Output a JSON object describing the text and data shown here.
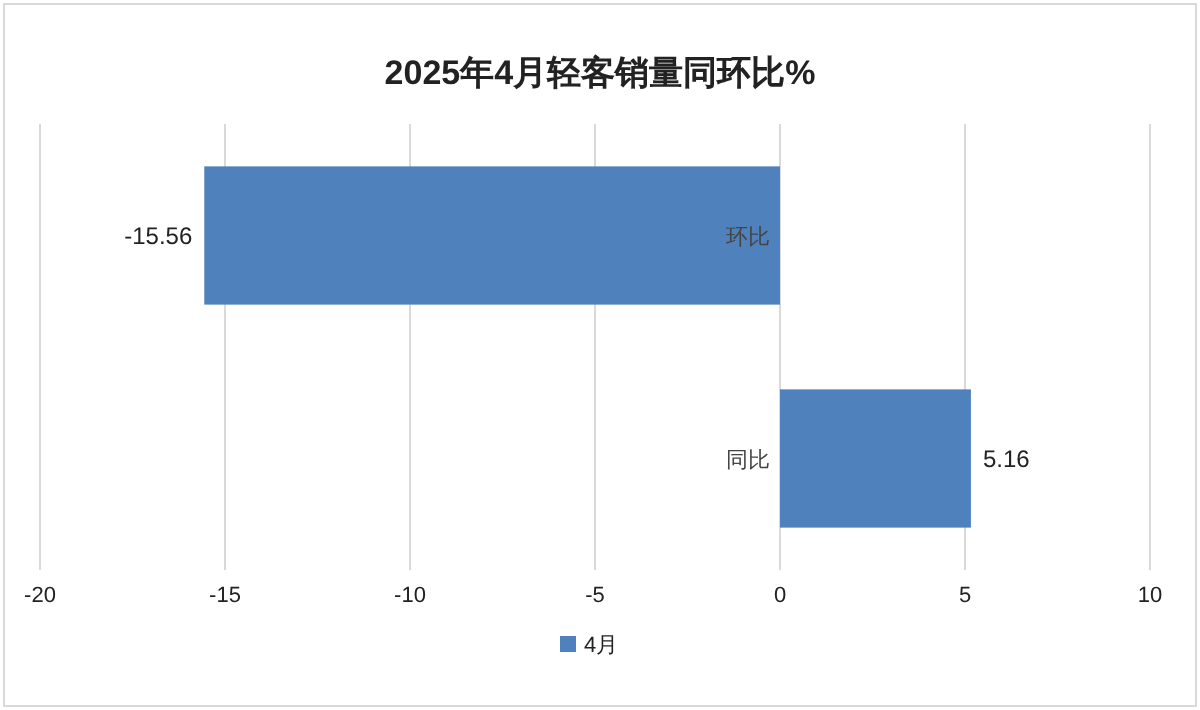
{
  "chart_data": {
    "type": "bar",
    "orientation": "horizontal",
    "title": "2025年4月轻客销量同环比%",
    "categories": [
      "环比",
      "同比"
    ],
    "series": [
      {
        "name": "4月",
        "color": "#4f81bd",
        "values": [
          -15.56,
          5.16
        ]
      }
    ],
    "xlim": [
      -20,
      10
    ],
    "xticks": [
      -20,
      -15,
      -10,
      -5,
      0,
      5,
      10
    ],
    "grid": "x",
    "legend": "bottom",
    "data_labels": true
  }
}
